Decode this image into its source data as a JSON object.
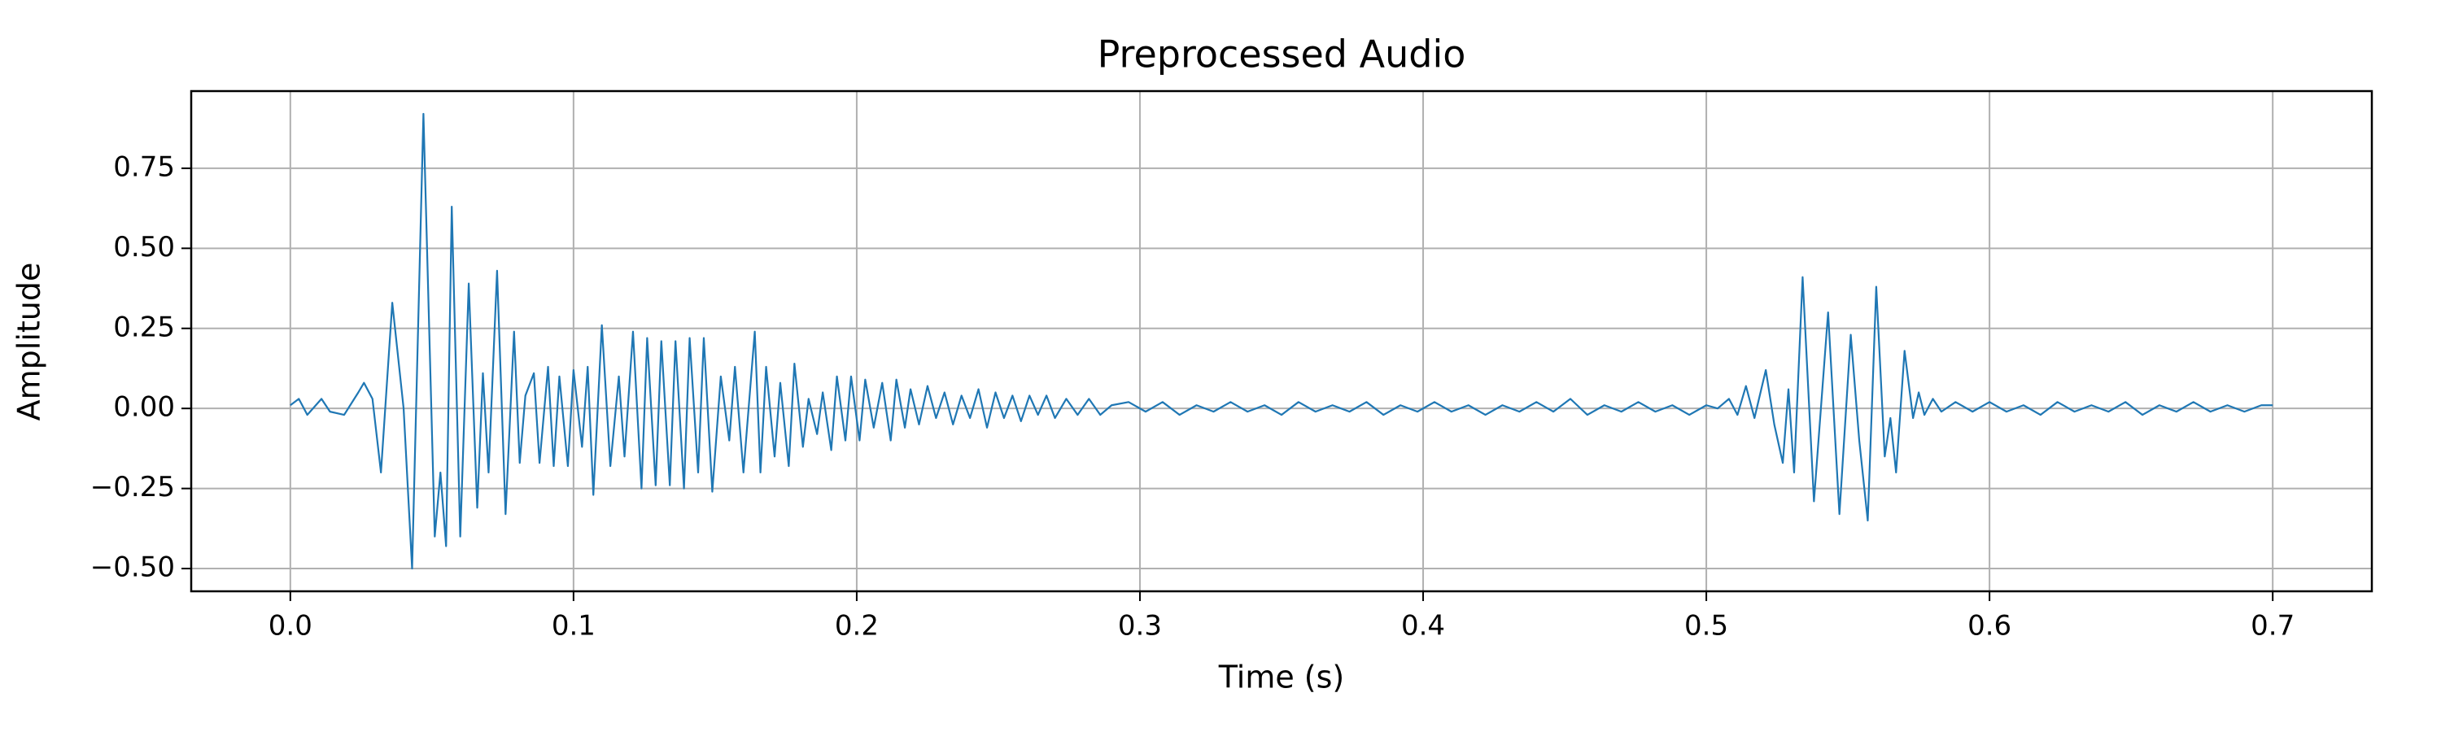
{
  "chart_data": {
    "type": "line",
    "title": "Preprocessed Audio",
    "x_label": "Time (s)",
    "y_label": "Amplitude",
    "color": "#1f77b4",
    "grid": true,
    "x": [
      0,
      0.003,
      0.006,
      0.011,
      0.014,
      0.019,
      0.024,
      0.026,
      0.029,
      0.032,
      0.036,
      0.04,
      0.043,
      0.047,
      0.051,
      0.053,
      0.055,
      0.057,
      0.06,
      0.063,
      0.066,
      0.068,
      0.07,
      0.073,
      0.076,
      0.079,
      0.081,
      0.083,
      0.086,
      0.088,
      0.091,
      0.093,
      0.095,
      0.098,
      0.1,
      0.103,
      0.105,
      0.107,
      0.11,
      0.113,
      0.116,
      0.118,
      0.121,
      0.124,
      0.126,
      0.129,
      0.131,
      0.134,
      0.136,
      0.139,
      0.141,
      0.144,
      0.146,
      0.149,
      0.152,
      0.155,
      0.157,
      0.16,
      0.164,
      0.166,
      0.168,
      0.171,
      0.173,
      0.176,
      0.178,
      0.181,
      0.183,
      0.186,
      0.188,
      0.191,
      0.193,
      0.196,
      0.198,
      0.201,
      0.203,
      0.206,
      0.209,
      0.212,
      0.214,
      0.217,
      0.219,
      0.222,
      0.225,
      0.228,
      0.231,
      0.234,
      0.237,
      0.24,
      0.243,
      0.246,
      0.249,
      0.252,
      0.255,
      0.258,
      0.261,
      0.264,
      0.267,
      0.27,
      0.274,
      0.278,
      0.282,
      0.286,
      0.29,
      0.296,
      0.302,
      0.308,
      0.314,
      0.32,
      0.326,
      0.332,
      0.338,
      0.344,
      0.35,
      0.356,
      0.362,
      0.368,
      0.374,
      0.38,
      0.386,
      0.392,
      0.398,
      0.404,
      0.41,
      0.416,
      0.422,
      0.428,
      0.434,
      0.44,
      0.446,
      0.452,
      0.458,
      0.464,
      0.47,
      0.476,
      0.482,
      0.488,
      0.494,
      0.5,
      0.504,
      0.508,
      0.511,
      0.514,
      0.517,
      0.521,
      0.524,
      0.527,
      0.529,
      0.531,
      0.534,
      0.538,
      0.543,
      0.547,
      0.551,
      0.554,
      0.557,
      0.56,
      0.563,
      0.565,
      0.567,
      0.57,
      0.573,
      0.575,
      0.577,
      0.58,
      0.583,
      0.588,
      0.594,
      0.6,
      0.606,
      0.612,
      0.618,
      0.624,
      0.63,
      0.636,
      0.642,
      0.648,
      0.654,
      0.66,
      0.666,
      0.672,
      0.678,
      0.684,
      0.69,
      0.696,
      0.7
    ],
    "values": [
      0.01,
      0.03,
      -0.02,
      0.03,
      -0.01,
      -0.02,
      0.05,
      0.08,
      0.03,
      -0.2,
      0.33,
      0.0,
      -0.5,
      0.92,
      -0.4,
      -0.2,
      -0.43,
      0.63,
      -0.4,
      0.39,
      -0.31,
      0.11,
      -0.2,
      0.43,
      -0.33,
      0.24,
      -0.17,
      0.04,
      0.11,
      -0.17,
      0.13,
      -0.18,
      0.1,
      -0.18,
      0.12,
      -0.12,
      0.13,
      -0.27,
      0.26,
      -0.18,
      0.1,
      -0.15,
      0.24,
      -0.25,
      0.22,
      -0.24,
      0.21,
      -0.24,
      0.21,
      -0.25,
      0.22,
      -0.2,
      0.22,
      -0.26,
      0.1,
      -0.1,
      0.13,
      -0.2,
      0.24,
      -0.2,
      0.13,
      -0.15,
      0.08,
      -0.18,
      0.14,
      -0.12,
      0.03,
      -0.08,
      0.05,
      -0.13,
      0.1,
      -0.1,
      0.1,
      -0.1,
      0.09,
      -0.06,
      0.08,
      -0.1,
      0.09,
      -0.06,
      0.06,
      -0.05,
      0.07,
      -0.03,
      0.05,
      -0.05,
      0.04,
      -0.03,
      0.06,
      -0.06,
      0.05,
      -0.03,
      0.04,
      -0.04,
      0.04,
      -0.02,
      0.04,
      -0.03,
      0.03,
      -0.02,
      0.03,
      -0.02,
      0.01,
      0.02,
      -0.01,
      0.02,
      -0.02,
      0.01,
      -0.01,
      0.02,
      -0.01,
      0.01,
      -0.02,
      0.02,
      -0.01,
      0.01,
      -0.01,
      0.02,
      -0.02,
      0.01,
      -0.01,
      0.02,
      -0.01,
      0.01,
      -0.02,
      0.01,
      -0.01,
      0.02,
      -0.01,
      0.03,
      -0.02,
      0.01,
      -0.01,
      0.02,
      -0.01,
      0.01,
      -0.02,
      0.01,
      0.0,
      0.03,
      -0.02,
      0.07,
      -0.03,
      0.12,
      -0.05,
      -0.17,
      0.06,
      -0.2,
      0.41,
      -0.29,
      0.3,
      -0.33,
      0.23,
      -0.1,
      -0.35,
      0.38,
      -0.15,
      -0.03,
      -0.2,
      0.18,
      -0.03,
      0.05,
      -0.02,
      0.03,
      -0.01,
      0.02,
      -0.01,
      0.02,
      -0.01,
      0.01,
      -0.02,
      0.02,
      -0.01,
      0.01,
      -0.01,
      0.02,
      -0.02,
      0.01,
      -0.01,
      0.02,
      -0.01,
      0.01,
      -0.01,
      0.01,
      0.01
    ],
    "xlim": [
      -0.035,
      0.735
    ],
    "xticks": [
      {
        "value": 0,
        "label": "0.0"
      },
      0.1,
      0.2,
      0.3,
      0.4,
      0.5,
      0.6,
      0.7
    ],
    "ylim": [
      -0.571,
      0.991
    ],
    "yticks": [
      {
        "value": -0.5,
        "label": "−0.50"
      },
      {
        "value": -0.25,
        "label": "−0.25"
      },
      {
        "value": 0,
        "label": "0.00"
      },
      0.25,
      {
        "value": 0.5,
        "label": "0.50"
      },
      0.75
    ]
  }
}
